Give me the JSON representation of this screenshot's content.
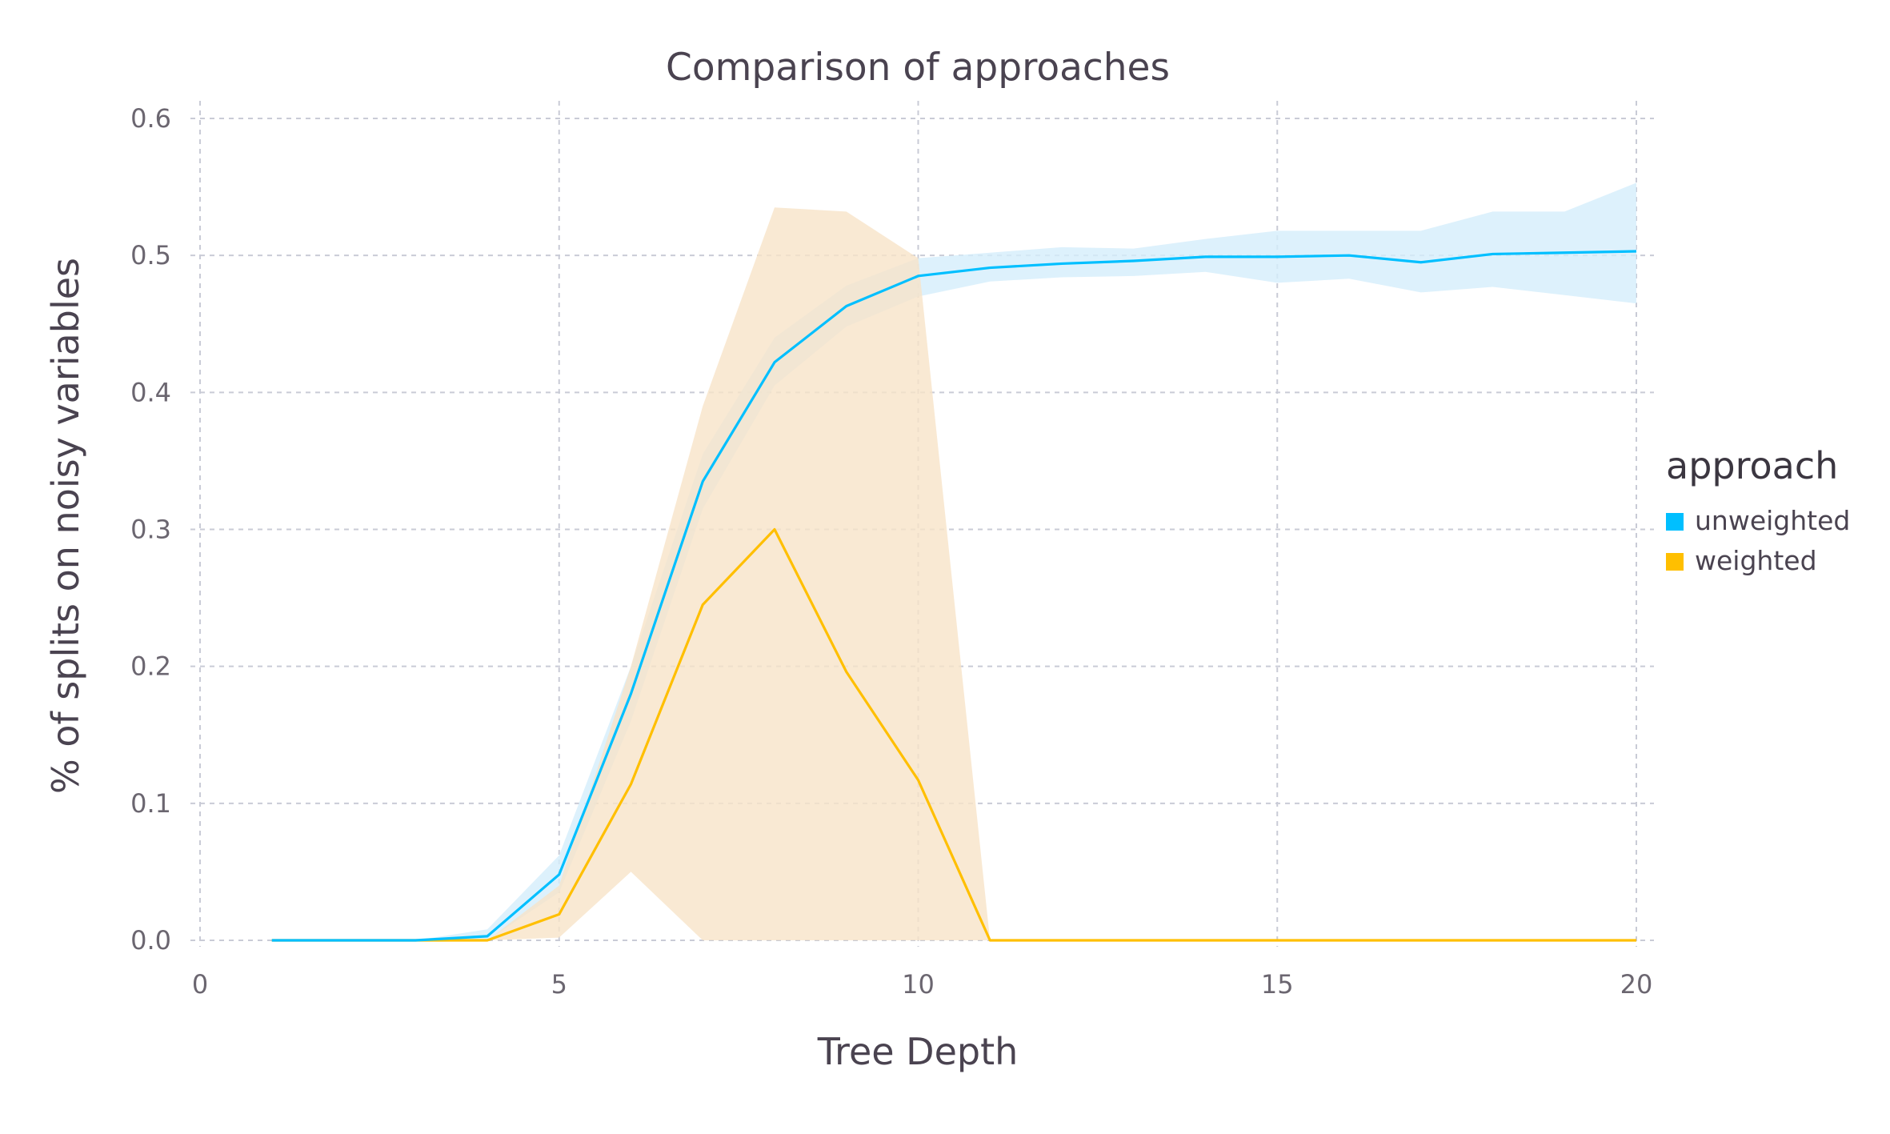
{
  "chart_data": {
    "type": "line",
    "title": "Comparison of approaches",
    "xlabel": "Tree Depth",
    "ylabel": "% of splits on noisy variables",
    "xlim": [
      0,
      20
    ],
    "ylim": [
      0,
      0.6
    ],
    "xticks": [
      0,
      5,
      10,
      15,
      20
    ],
    "xtick_labels": [
      "0",
      "5",
      "10",
      "15",
      "20"
    ],
    "yticks": [
      0,
      0.1,
      0.2,
      0.3,
      0.4,
      0.5,
      0.6
    ],
    "ytick_labels": [
      "0.0",
      "0.1",
      "0.2",
      "0.3",
      "0.4",
      "0.5",
      "0.6"
    ],
    "grid": true,
    "legend": {
      "title": "approach",
      "placement": "right",
      "entries": [
        "unweighted",
        "weighted"
      ]
    },
    "x": [
      1,
      2,
      3,
      4,
      5,
      6,
      7,
      8,
      9,
      10,
      11,
      12,
      13,
      14,
      15,
      16,
      17,
      18,
      19,
      20
    ],
    "series": [
      {
        "name": "unweighted",
        "color": "#00bfff",
        "band_color": "#d4edfb",
        "values": [
          0,
          0,
          0,
          0.003,
          0.048,
          0.18,
          0.335,
          0.422,
          0.463,
          0.485,
          0.491,
          0.494,
          0.496,
          0.499,
          0.499,
          0.5,
          0.495,
          0.501,
          0.502,
          0.503
        ],
        "lower": [
          0,
          0,
          0,
          0,
          0.035,
          0.16,
          0.315,
          0.405,
          0.448,
          0.47,
          0.481,
          0.484,
          0.485,
          0.488,
          0.48,
          0.483,
          0.473,
          0.477,
          0.471,
          0.465
        ],
        "upper": [
          0,
          0,
          0,
          0.008,
          0.062,
          0.2,
          0.355,
          0.44,
          0.478,
          0.498,
          0.502,
          0.506,
          0.505,
          0.512,
          0.518,
          0.518,
          0.518,
          0.532,
          0.532,
          0.553
        ]
      },
      {
        "name": "weighted",
        "color": "#ffbf00",
        "band_color": "#f7e4c8",
        "values": [
          0,
          0,
          0,
          0,
          0.019,
          0.114,
          0.245,
          0.3,
          0.196,
          0.117,
          0,
          0,
          0,
          0,
          0,
          0,
          0,
          0,
          0,
          0
        ],
        "lower": [
          0,
          0,
          0,
          0,
          0.002,
          0.05,
          0,
          0,
          0,
          0,
          0,
          0,
          0,
          0,
          0,
          0,
          0,
          0,
          0,
          0
        ],
        "upper": [
          0,
          0,
          0,
          0,
          0.04,
          0.2,
          0.39,
          0.535,
          0.532,
          0.498,
          0,
          0,
          0,
          0,
          0,
          0,
          0,
          0,
          0,
          0
        ]
      }
    ]
  }
}
